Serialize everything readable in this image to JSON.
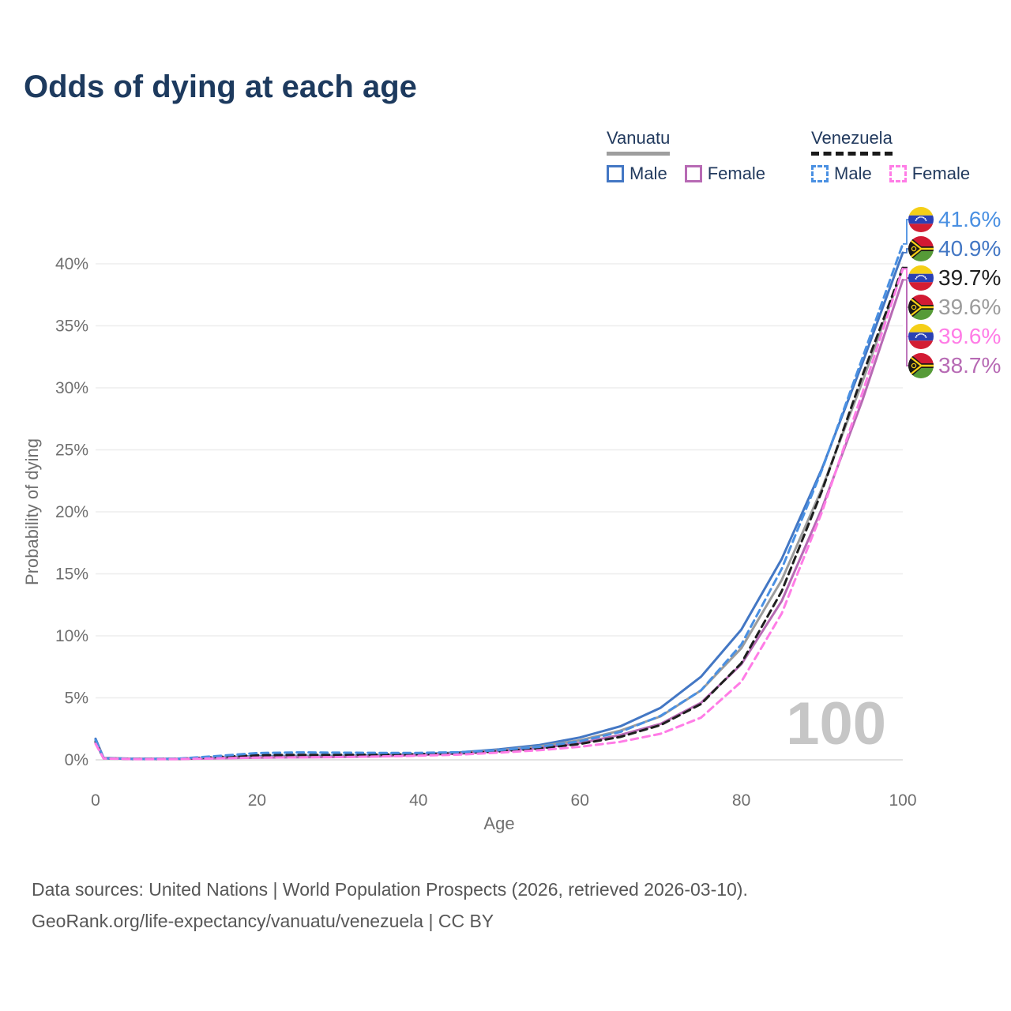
{
  "title": "Odds of dying at each age",
  "legend": {
    "groups": [
      {
        "name": "Vanuatu",
        "line_color": "#9e9e9e",
        "line_style": "solid",
        "items": [
          {
            "label": "Male",
            "color": "#4377c4",
            "style": "solid"
          },
          {
            "label": "Female",
            "color": "#b76ab4",
            "style": "solid"
          }
        ]
      },
      {
        "name": "Venezuela",
        "line_color": "#1a1a1a",
        "line_style": "dashed",
        "items": [
          {
            "label": "Male",
            "color": "#4a90e2",
            "style": "dashed"
          },
          {
            "label": "Female",
            "color": "#ff7ce6",
            "style": "dashed"
          }
        ]
      }
    ]
  },
  "footer": {
    "line1": "Data sources: United Nations | World Population Prospects (2026, retrieved 2026-03-10).",
    "line2": "GeoRank.org/life-expectancy/vanuatu/venezuela | CC BY"
  },
  "chart_data": {
    "type": "line",
    "title": "Odds of dying at each age",
    "xlabel": "Age",
    "ylabel": "Probability of dying",
    "xlim": [
      0,
      100
    ],
    "ylim_percent": [
      0,
      40
    ],
    "grid": "horizontal",
    "legend_position": "top-right",
    "watermark": "100",
    "x_ticks": [
      {
        "value": 0,
        "label": "0"
      },
      {
        "value": 20,
        "label": "20"
      },
      {
        "value": 40,
        "label": "40"
      },
      {
        "value": 60,
        "label": "60"
      },
      {
        "value": 80,
        "label": "80"
      },
      {
        "value": 100,
        "label": "100"
      }
    ],
    "y_ticks": [
      {
        "value": 0,
        "label": "0%"
      },
      {
        "value": 5,
        "label": "5%"
      },
      {
        "value": 10,
        "label": "10%"
      },
      {
        "value": 15,
        "label": "15%"
      },
      {
        "value": 20,
        "label": "20%"
      },
      {
        "value": 25,
        "label": "25%"
      },
      {
        "value": 30,
        "label": "30%"
      },
      {
        "value": 35,
        "label": "35%"
      },
      {
        "value": 40,
        "label": "40%"
      }
    ],
    "x": [
      0,
      1,
      5,
      10,
      15,
      20,
      25,
      30,
      35,
      40,
      45,
      50,
      55,
      60,
      65,
      70,
      75,
      80,
      85,
      90,
      95,
      100
    ],
    "series": [
      {
        "id": "vanuatu_male",
        "name": "Vanuatu Male",
        "country": "Vanuatu",
        "sex": "male",
        "style": "solid",
        "color": "#4377c4",
        "values": [
          1.7,
          0.15,
          0.08,
          0.08,
          0.18,
          0.3,
          0.32,
          0.32,
          0.36,
          0.45,
          0.6,
          0.85,
          1.2,
          1.8,
          2.7,
          4.2,
          6.7,
          10.5,
          16.2,
          23.5,
          32.0,
          40.9
        ]
      },
      {
        "id": "vanuatu_both",
        "name": "Vanuatu Both sexes",
        "country": "Vanuatu",
        "sex": "both",
        "style": "solid",
        "color": "#9c9c9c",
        "values": [
          1.55,
          0.14,
          0.08,
          0.08,
          0.15,
          0.24,
          0.26,
          0.27,
          0.32,
          0.42,
          0.55,
          0.78,
          1.08,
          1.58,
          2.35,
          3.5,
          5.6,
          9.0,
          14.5,
          21.9,
          30.5,
          39.6
        ]
      },
      {
        "id": "vanuatu_female",
        "name": "Vanuatu Female",
        "country": "Vanuatu",
        "sex": "female",
        "style": "solid",
        "color": "#b76ab4",
        "values": [
          1.4,
          0.12,
          0.07,
          0.07,
          0.12,
          0.18,
          0.2,
          0.22,
          0.28,
          0.38,
          0.5,
          0.7,
          0.95,
          1.35,
          2.0,
          2.9,
          4.6,
          7.7,
          12.8,
          20.3,
          29.0,
          38.7
        ]
      },
      {
        "id": "venezuela_both",
        "name": "Venezuela Both sexes",
        "country": "Venezuela",
        "sex": "both",
        "style": "dashed",
        "color": "#1f1f1f",
        "values": [
          1.45,
          0.12,
          0.07,
          0.07,
          0.22,
          0.37,
          0.4,
          0.4,
          0.42,
          0.45,
          0.52,
          0.68,
          0.92,
          1.28,
          1.85,
          2.8,
          4.5,
          7.8,
          13.6,
          21.7,
          31.0,
          39.7
        ]
      },
      {
        "id": "venezuela_male",
        "name": "Venezuela Male",
        "country": "Venezuela",
        "sex": "male",
        "style": "dashed",
        "color": "#4a90e2",
        "values": [
          1.6,
          0.13,
          0.07,
          0.08,
          0.3,
          0.55,
          0.6,
          0.58,
          0.56,
          0.56,
          0.62,
          0.78,
          1.05,
          1.5,
          2.25,
          3.55,
          5.6,
          9.3,
          15.4,
          23.4,
          32.4,
          41.6
        ]
      },
      {
        "id": "venezuela_female",
        "name": "Venezuela Female",
        "country": "Venezuela",
        "sex": "female",
        "style": "dashed",
        "color": "#ff7ce6",
        "values": [
          1.3,
          0.11,
          0.06,
          0.06,
          0.12,
          0.18,
          0.2,
          0.22,
          0.27,
          0.33,
          0.42,
          0.58,
          0.78,
          1.05,
          1.45,
          2.1,
          3.4,
          6.3,
          11.8,
          20.0,
          29.6,
          39.6
        ]
      }
    ],
    "end_labels": [
      {
        "text": "41.6%",
        "series": "venezuela_male",
        "flag": "venezuela",
        "color": "#4a90e2"
      },
      {
        "text": "40.9%",
        "series": "vanuatu_male",
        "flag": "vanuatu",
        "color": "#4377c4"
      },
      {
        "text": "39.7%",
        "series": "venezuela_both",
        "flag": "venezuela",
        "color": "#1f1f1f"
      },
      {
        "text": "39.6%",
        "series": "vanuatu_both",
        "flag": "vanuatu",
        "color": "#9c9c9c"
      },
      {
        "text": "39.6%",
        "series": "venezuela_female",
        "flag": "venezuela",
        "color": "#ff7ce6"
      },
      {
        "text": "38.7%",
        "series": "vanuatu_female",
        "flag": "vanuatu",
        "color": "#b76ab4"
      }
    ]
  }
}
